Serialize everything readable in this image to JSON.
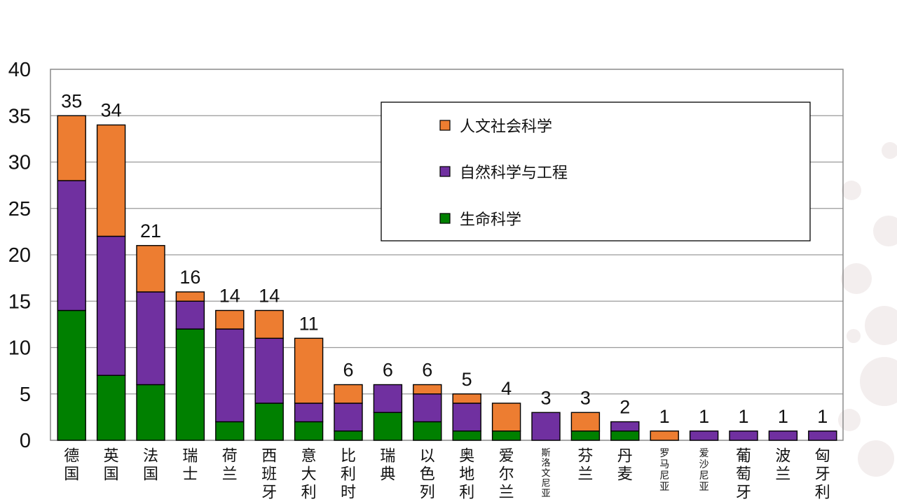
{
  "chart_data": {
    "type": "bar",
    "stacked": true,
    "categories": [
      "德国",
      "英国",
      "法国",
      "瑞士",
      "荷兰",
      "西班牙",
      "意大利",
      "比利时",
      "瑞典",
      "以色列",
      "奥地利",
      "爱尔兰",
      "斯洛文尼亚",
      "芬兰",
      "丹麦",
      "罗马尼亚",
      "爱沙尼亚",
      "葡萄牙",
      "波兰",
      "匈牙利"
    ],
    "series": [
      {
        "name": "生命科学",
        "color": "#008000",
        "values": [
          14,
          7,
          6,
          12,
          2,
          4,
          2,
          1,
          3,
          2,
          1,
          1,
          0,
          1,
          1,
          0,
          0,
          0,
          0,
          0
        ]
      },
      {
        "name": "自然科学与工程",
        "color": "#7030a0",
        "values": [
          14,
          15,
          10,
          3,
          10,
          7,
          2,
          3,
          3,
          3,
          3,
          0,
          3,
          0,
          1,
          0,
          1,
          1,
          1,
          1
        ]
      },
      {
        "name": "人文社会科学",
        "color": "#ed7d31",
        "values": [
          7,
          12,
          5,
          1,
          2,
          3,
          7,
          2,
          0,
          1,
          1,
          3,
          0,
          2,
          0,
          1,
          0,
          0,
          0,
          0
        ]
      }
    ],
    "totals": [
      35,
      34,
      21,
      16,
      14,
      14,
      11,
      6,
      6,
      6,
      5,
      4,
      3,
      3,
      2,
      1,
      1,
      1,
      1,
      1
    ],
    "ylim": [
      0,
      40
    ],
    "yticks": [
      0,
      5,
      10,
      15,
      20,
      25,
      30,
      35,
      40
    ],
    "grid": true,
    "legend": {
      "placement": "top-right",
      "order": [
        "人文社会科学",
        "自然科学与工程",
        "生命科学"
      ]
    },
    "title": "",
    "xlabel": "",
    "ylabel": ""
  }
}
